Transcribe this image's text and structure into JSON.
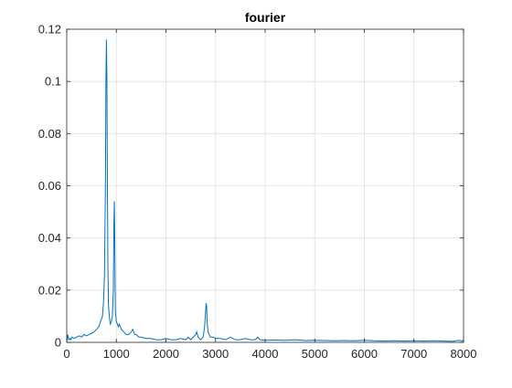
{
  "chart_data": {
    "type": "line",
    "title": "fourier",
    "xlabel": "",
    "ylabel": "",
    "xlim": [
      0,
      8000
    ],
    "ylim": [
      0,
      0.12
    ],
    "grid": true,
    "x_ticks": [
      "0",
      "1000",
      "2000",
      "3000",
      "4000",
      "5000",
      "6000",
      "7000",
      "8000"
    ],
    "y_ticks": [
      "0",
      "0.02",
      "0.04",
      "0.06",
      "0.08",
      "0.1",
      "0.12"
    ],
    "line_color": "#0072BD",
    "series": [
      {
        "x": [
          0,
          20,
          40,
          60,
          80,
          100,
          150,
          200,
          250,
          300,
          350,
          400,
          450,
          500,
          550,
          600,
          650,
          680,
          700,
          720,
          740,
          760,
          780,
          790,
          800,
          810,
          820,
          830,
          840,
          850,
          860,
          870,
          880,
          900,
          920,
          940,
          950,
          960,
          970,
          980,
          1000,
          1020,
          1040,
          1060,
          1100,
          1150,
          1200,
          1250,
          1300,
          1330,
          1350,
          1370,
          1400,
          1450,
          1500,
          1600,
          1700,
          1800,
          1900,
          2000,
          2100,
          2200,
          2300,
          2400,
          2450,
          2500,
          2550,
          2600,
          2620,
          2650,
          2700,
          2750,
          2780,
          2800,
          2810,
          2820,
          2830,
          2850,
          2870,
          2900,
          2950,
          3000,
          3100,
          3200,
          3300,
          3400,
          3500,
          3600,
          3700,
          3800,
          3850,
          3900,
          4000,
          4200,
          4400,
          4600,
          4800,
          5000,
          5200,
          5400,
          5600,
          5800,
          6000,
          6200,
          6400,
          6600,
          6800,
          7000,
          7200,
          7400,
          7600,
          7800,
          7900,
          8000
        ],
        "y": [
          0.0005,
          0.003,
          0.001,
          0.0015,
          0.001,
          0.002,
          0.0015,
          0.002,
          0.0025,
          0.002,
          0.003,
          0.0025,
          0.003,
          0.0035,
          0.004,
          0.005,
          0.006,
          0.008,
          0.009,
          0.01,
          0.015,
          0.025,
          0.06,
          0.1,
          0.116,
          0.1,
          0.06,
          0.03,
          0.015,
          0.012,
          0.01,
          0.008,
          0.007,
          0.008,
          0.01,
          0.02,
          0.045,
          0.054,
          0.035,
          0.012,
          0.008,
          0.007,
          0.006,
          0.007,
          0.005,
          0.004,
          0.003,
          0.003,
          0.004,
          0.005,
          0.004,
          0.003,
          0.003,
          0.002,
          0.002,
          0.0015,
          0.0015,
          0.001,
          0.001,
          0.0015,
          0.001,
          0.001,
          0.0015,
          0.001,
          0.002,
          0.001,
          0.002,
          0.003,
          0.004,
          0.002,
          0.001,
          0.002,
          0.006,
          0.012,
          0.015,
          0.014,
          0.008,
          0.004,
          0.003,
          0.002,
          0.002,
          0.0015,
          0.0015,
          0.001,
          0.002,
          0.001,
          0.001,
          0.0015,
          0.001,
          0.001,
          0.002,
          0.001,
          0.0008,
          0.0009,
          0.0008,
          0.001,
          0.0007,
          0.0008,
          0.0007,
          0.0006,
          0.0007,
          0.0006,
          0.0008,
          0.0006,
          0.0005,
          0.0006,
          0.0005,
          0.0006,
          0.0005,
          0.0006,
          0.0005,
          0.0004,
          0.0008,
          0.0005
        ]
      }
    ]
  }
}
